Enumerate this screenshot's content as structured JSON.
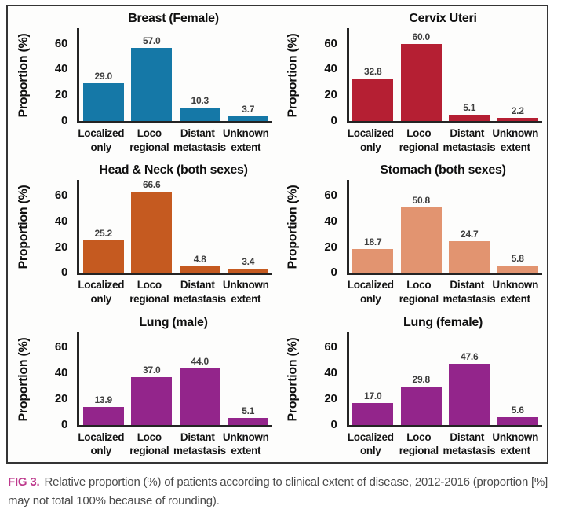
{
  "figure": {
    "caption_label": "FIG 3.",
    "caption_text": "Relative proportion (%) of patients according to clinical extent of disease, 2012-2016 (proportion [%] may not total 100% because of rounding).",
    "caption_label_color": "#be3a8d",
    "frame_border_color": "#353535"
  },
  "chart_data": [
    {
      "type": "bar",
      "title": "Breast (Female)",
      "ylabel": "Proportion (%)",
      "categories": [
        [
          "Localized",
          "only"
        ],
        [
          "Loco",
          "regional"
        ],
        [
          "Distant",
          "metastasis"
        ],
        [
          "Unknown",
          "extent"
        ]
      ],
      "values": [
        29.0,
        57.0,
        10.3,
        3.7
      ],
      "color": "#1578a7",
      "yticks": [
        0,
        20,
        40,
        60
      ],
      "ylim": [
        0,
        72
      ],
      "grid": false
    },
    {
      "type": "bar",
      "title": "Cervix Uteri",
      "ylabel": "Proportion (%)",
      "categories": [
        [
          "Localized",
          "only"
        ],
        [
          "Loco",
          "regional"
        ],
        [
          "Distant",
          "metastasis"
        ],
        [
          "Unknown",
          "extent"
        ]
      ],
      "values": [
        32.8,
        60.0,
        5.1,
        2.2
      ],
      "color": "#b51f33",
      "yticks": [
        0,
        20,
        40,
        60
      ],
      "ylim": [
        0,
        72
      ],
      "grid": false
    },
    {
      "type": "bar",
      "title": "Head & Neck (both sexes)",
      "ylabel": "Proportion (%)",
      "categories": [
        [
          "Localized",
          "only"
        ],
        [
          "Loco",
          "regional"
        ],
        [
          "Distant",
          "metastasis"
        ],
        [
          "Unknown",
          "extent"
        ]
      ],
      "values": [
        25.2,
        66.6,
        4.8,
        3.4
      ],
      "color": "#c55a20",
      "yticks": [
        0,
        20,
        40,
        60
      ],
      "ylim": [
        0,
        72
      ],
      "grid": false
    },
    {
      "type": "bar",
      "title": "Stomach (both sexes)",
      "ylabel": "Proportion (%)",
      "categories": [
        [
          "Localized",
          "only"
        ],
        [
          "Loco",
          "regional"
        ],
        [
          "Distant",
          "metastasis"
        ],
        [
          "Unknown",
          "extent"
        ]
      ],
      "values": [
        18.7,
        50.8,
        24.7,
        5.8
      ],
      "color": "#e29470",
      "yticks": [
        0,
        20,
        40,
        60
      ],
      "ylim": [
        0,
        72
      ],
      "grid": false
    },
    {
      "type": "bar",
      "title": "Lung (male)",
      "ylabel": "Proportion (%)",
      "categories": [
        [
          "Localized",
          "only"
        ],
        [
          "Loco",
          "regional"
        ],
        [
          "Distant",
          "metastasis"
        ],
        [
          "Unknown",
          "extent"
        ]
      ],
      "values": [
        13.9,
        37.0,
        44.0,
        5.1
      ],
      "color": "#93258b",
      "yticks": [
        0,
        20,
        40,
        60
      ],
      "ylim": [
        0,
        72
      ],
      "grid": false
    },
    {
      "type": "bar",
      "title": "Lung (female)",
      "ylabel": "Proportion (%)",
      "categories": [
        [
          "Localized",
          "only"
        ],
        [
          "Loco",
          "regional"
        ],
        [
          "Distant",
          "metastasis"
        ],
        [
          "Unknown",
          "extent"
        ]
      ],
      "values": [
        17.0,
        29.8,
        47.6,
        5.6
      ],
      "color": "#93258b",
      "yticks": [
        0,
        20,
        40,
        60
      ],
      "ylim": [
        0,
        72
      ],
      "grid": false
    }
  ]
}
